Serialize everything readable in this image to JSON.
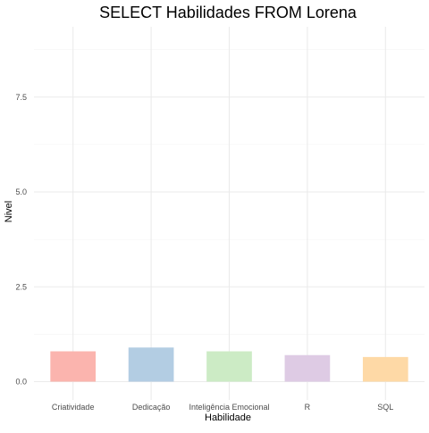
{
  "chart_data": {
    "type": "bar",
    "title": "SELECT Habilidades FROM Lorena",
    "xlabel": "Habilidade",
    "ylabel": "Nivel",
    "categories": [
      "Criatividade",
      "Dedicação",
      "Inteligência Emocional",
      "R",
      "SQL"
    ],
    "values": [
      0.8,
      0.9,
      0.8,
      0.7,
      0.65
    ],
    "colors": [
      "#FBB4AE",
      "#B3CDE3",
      "#CCEBC5",
      "#DECBE4",
      "#FED9A6"
    ],
    "ylim": [
      0,
      9.4
    ],
    "yticks": [
      0,
      2.5,
      5,
      7.5
    ],
    "ytick_labels": [
      "0.0",
      "2.5",
      "5.0",
      "7.5"
    ],
    "grid": true,
    "legend": "none"
  }
}
